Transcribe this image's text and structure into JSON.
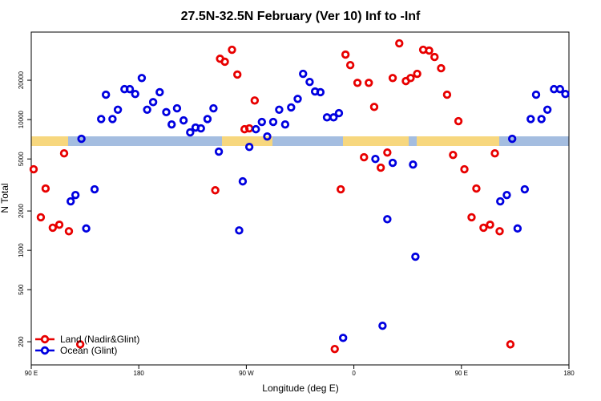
{
  "chart_data": {
    "type": "scatter",
    "title": "27.5N-32.5N February (Ver 10)   Inf to -Inf",
    "x_label": "Longitude (deg E)",
    "y_label": "N Total",
    "xlim": [
      90,
      540
    ],
    "ylim": [
      133,
      46700
    ],
    "y_scale": "log",
    "xticks": [
      {
        "value": 90,
        "label": "90 E"
      },
      180,
      {
        "value": 270,
        "label": "90 W"
      },
      {
        "value": 360,
        "label": "0"
      },
      {
        "value": 450,
        "label": "90 E"
      },
      {
        "value": 540,
        "label": "180"
      }
    ],
    "yticks": [
      200,
      500,
      1000,
      2000,
      5000,
      10000,
      20000
    ],
    "legend_position": "bottom-left",
    "series": [
      {
        "name": "Land (Nadir&Glint)",
        "color": "#e80000",
        "x": [
          92,
          98,
          102,
          108,
          113.5,
          117.5,
          121.5,
          131,
          244,
          248,
          252,
          258,
          262.5,
          268.5,
          272.5,
          277,
          344,
          349,
          353,
          357,
          363,
          368.5,
          372.5,
          377,
          382.5,
          388,
          392.5,
          398,
          403.5,
          407.5,
          413,
          418,
          423,
          427.5,
          433,
          438,
          443,
          447.5,
          452.5,
          458.5,
          462.5,
          468.5,
          474,
          478,
          482,
          491
        ],
        "values": [
          4170,
          1790,
          2970,
          1490,
          1570,
          5520,
          1400,
          191,
          2880,
          29200,
          27700,
          34200,
          22100,
          8440,
          8570,
          14000,
          176,
          2930,
          31400,
          26100,
          19100,
          5150,
          19100,
          12500,
          4290,
          5600,
          20800,
          38300,
          19700,
          20800,
          22400,
          34200,
          33700,
          30100,
          24700,
          15500,
          5370,
          9730,
          4170,
          1790,
          2970,
          1490,
          1570,
          5520,
          1400,
          191
        ]
      },
      {
        "name": "Ocean (Glint)",
        "color": "#0000e0",
        "x": [
          123,
          127,
          132,
          136,
          143,
          148.5,
          152.5,
          158,
          162.5,
          168,
          172.5,
          177,
          182.5,
          187,
          192,
          197.5,
          203,
          207.5,
          212,
          217.5,
          223,
          227.5,
          232,
          237.5,
          242.5,
          247,
          264,
          267,
          272.5,
          278,
          283,
          287.5,
          292.5,
          297.5,
          302.5,
          307.5,
          313,
          317.5,
          323,
          327.5,
          332,
          337.5,
          343,
          347.5,
          351,
          378,
          384,
          388,
          392.5,
          409.5,
          411.5,
          482.5,
          488,
          492.5,
          497,
          503,
          508,
          512.5,
          517,
          522,
          527.5,
          532.5,
          537
        ],
        "values": [
          2370,
          2650,
          7130,
          1470,
          2930,
          10100,
          15500,
          10100,
          11900,
          17100,
          17100,
          15700,
          20800,
          11900,
          13600,
          16200,
          11400,
          9180,
          12200,
          9860,
          7980,
          8690,
          8570,
          10100,
          12200,
          5690,
          1420,
          3370,
          6180,
          8440,
          9600,
          7430,
          9600,
          11900,
          9180,
          12400,
          14400,
          22400,
          19400,
          16400,
          16200,
          10400,
          10400,
          11200,
          214,
          5000,
          265,
          1730,
          4670,
          4530,
          894,
          2370,
          2650,
          7130,
          1470,
          2930,
          10100,
          15500,
          10100,
          11900,
          17100,
          17100,
          15700
        ]
      }
    ]
  }
}
